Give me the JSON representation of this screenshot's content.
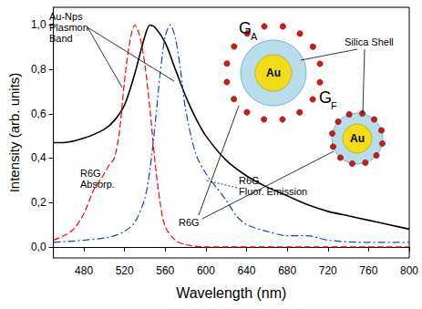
{
  "chart_data": {
    "type": "line",
    "xlabel": "Wavelength (nm)",
    "ylabel": "Intensity (arb. units)",
    "xlim": [
      450,
      800
    ],
    "xticks": [
      480,
      520,
      560,
      600,
      640,
      680,
      720,
      760,
      800
    ],
    "ylim": [
      -0.05,
      1.08
    ],
    "yticks": [
      {
        "value": 0,
        "label": "0,0"
      },
      {
        "value": 0.2,
        "label": "0,2"
      },
      {
        "value": 0.4,
        "label": "0,4"
      },
      {
        "value": 0.6,
        "label": "0,6"
      },
      {
        "value": 0.8,
        "label": "0,8"
      },
      {
        "value": 1,
        "label": "1,0"
      }
    ],
    "series": [
      {
        "name": "Au-Nps Plasmon Band",
        "color": "#000000",
        "line_style": "solid",
        "x": [
          450,
          460,
          480,
          500,
          510,
          520,
          530,
          540,
          545,
          550,
          560,
          570,
          580,
          590,
          600,
          620,
          640,
          660,
          680,
          700,
          720,
          740,
          760,
          780,
          800
        ],
        "values": [
          0.47,
          0.47,
          0.49,
          0.53,
          0.57,
          0.64,
          0.78,
          0.95,
          1.0,
          0.99,
          0.92,
          0.8,
          0.68,
          0.58,
          0.5,
          0.39,
          0.32,
          0.27,
          0.23,
          0.19,
          0.16,
          0.14,
          0.12,
          0.1,
          0.08
        ]
      },
      {
        "name": "R6G Absorp.",
        "color": "#ff0000",
        "line_style": "dashed",
        "x": [
          450,
          460,
          470,
          480,
          490,
          500,
          505,
          510,
          515,
          520,
          525,
          530,
          535,
          540,
          545,
          550,
          555,
          560,
          570,
          580,
          600,
          650,
          700,
          800
        ],
        "values": [
          0.03,
          0.05,
          0.08,
          0.15,
          0.26,
          0.33,
          0.37,
          0.4,
          0.52,
          0.75,
          0.92,
          1.0,
          0.95,
          0.82,
          0.62,
          0.38,
          0.2,
          0.09,
          0.03,
          0.01,
          0.0,
          0.0,
          0.0,
          0.0
        ]
      },
      {
        "name": "R6G Fluor. Emission",
        "color": "#1f3fbf",
        "line_style": "dashdot",
        "x": [
          450,
          480,
          500,
          510,
          520,
          530,
          540,
          545,
          550,
          555,
          560,
          565,
          570,
          575,
          580,
          590,
          600,
          610,
          620,
          630,
          640,
          660,
          680,
          700,
          720,
          760,
          800
        ],
        "values": [
          0.02,
          0.03,
          0.04,
          0.05,
          0.07,
          0.11,
          0.22,
          0.35,
          0.55,
          0.78,
          0.95,
          1.0,
          0.94,
          0.8,
          0.62,
          0.42,
          0.33,
          0.27,
          0.21,
          0.14,
          0.1,
          0.07,
          0.05,
          0.05,
          0.03,
          0.02,
          0.02
        ]
      }
    ],
    "inset": {
      "groups": [
        {
          "name": "G",
          "subscript": "A"
        },
        {
          "name": "G",
          "subscript": "F"
        }
      ],
      "core": "Au",
      "shell": "Silica Shell",
      "dye": "R6G"
    }
  }
}
